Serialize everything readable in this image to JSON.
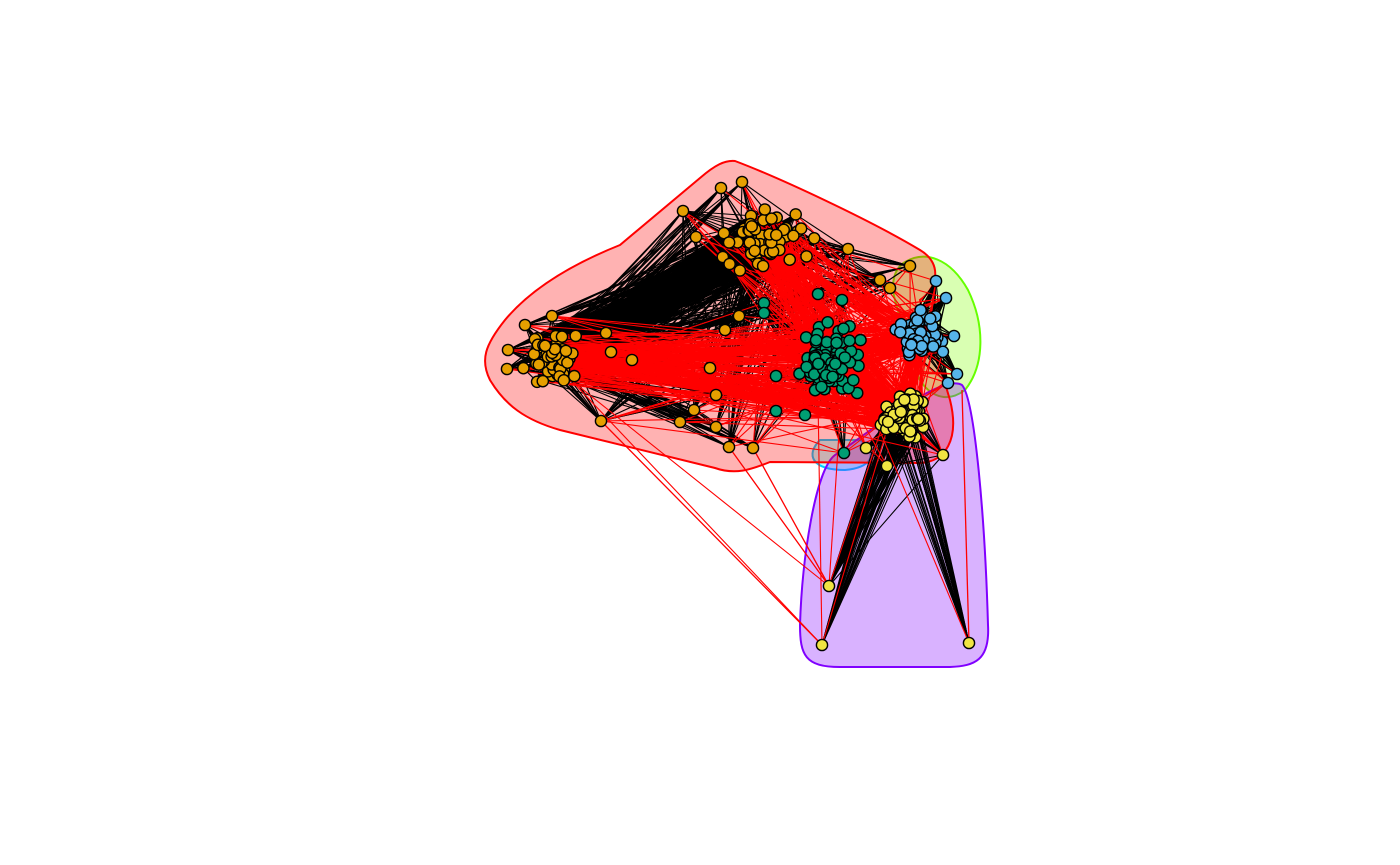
{
  "graph": {
    "communities": [
      {
        "id": "orange",
        "fill": "#E69F00",
        "hull_fill": "#FF0000",
        "hull_stroke": "#FF0000"
      },
      {
        "id": "green",
        "fill": "#009E73",
        "hull_fill": "#00FFFF",
        "hull_stroke": "#00CCFF"
      },
      {
        "id": "blue",
        "fill": "#56B4E9",
        "hull_fill": "#80FF00",
        "hull_stroke": "#66FF00"
      },
      {
        "id": "yellow",
        "fill": "#F0E442",
        "hull_fill": "#8000FF",
        "hull_stroke": "#8000FF"
      }
    ],
    "edge_colors": {
      "within": "#000000",
      "between": "#FF0000"
    },
    "node_stroke": "#000000"
  }
}
